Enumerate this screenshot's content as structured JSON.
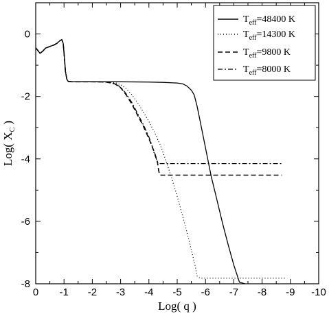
{
  "chart_data": {
    "type": "line",
    "xlabel_main": "Log( q )",
    "ylabel_main": "Log( X",
    "ylabel_sub": "C",
    "ylabel_tail": " )",
    "xlim": [
      0,
      -10
    ],
    "ylim": [
      -8,
      1
    ],
    "x_ticks": [
      0,
      -1,
      -2,
      -3,
      -4,
      -5,
      -6,
      -7,
      -8,
      -9,
      -10
    ],
    "x_tick_labels": [
      "0",
      "-1",
      "-2",
      "-3",
      "-4",
      "-5",
      "-6",
      "-7",
      "-8",
      "-9",
      "-10"
    ],
    "y_ticks": [
      0,
      -2,
      -4,
      -6,
      -8
    ],
    "y_tick_labels": [
      "0",
      "-2",
      "-4",
      "-6",
      "-8"
    ],
    "grid": false,
    "legend_position": "top-right",
    "series": [
      {
        "legend_prefix": "T",
        "legend_sub": "eff",
        "legend_suffix": "=48400 K",
        "style": "solid",
        "color": "#000000",
        "points": [
          [
            0,
            -0.45
          ],
          [
            -0.05,
            -0.5
          ],
          [
            -0.15,
            -0.62
          ],
          [
            -0.25,
            -0.55
          ],
          [
            -0.35,
            -0.45
          ],
          [
            -0.5,
            -0.4
          ],
          [
            -0.65,
            -0.35
          ],
          [
            -0.75,
            -0.3
          ],
          [
            -0.85,
            -0.22
          ],
          [
            -0.92,
            -0.18
          ],
          [
            -0.97,
            -0.3
          ],
          [
            -1.0,
            -0.6
          ],
          [
            -1.05,
            -1.2
          ],
          [
            -1.1,
            -1.45
          ],
          [
            -1.15,
            -1.52
          ],
          [
            -1.3,
            -1.53
          ],
          [
            -2.0,
            -1.53
          ],
          [
            -3.0,
            -1.53
          ],
          [
            -4.0,
            -1.54
          ],
          [
            -4.5,
            -1.55
          ],
          [
            -5.0,
            -1.57
          ],
          [
            -5.2,
            -1.6
          ],
          [
            -5.35,
            -1.67
          ],
          [
            -5.5,
            -1.8
          ],
          [
            -5.6,
            -1.95
          ],
          [
            -5.7,
            -2.3
          ],
          [
            -5.8,
            -2.75
          ],
          [
            -5.9,
            -3.2
          ],
          [
            -6.0,
            -3.65
          ],
          [
            -6.1,
            -4.1
          ],
          [
            -6.2,
            -4.55
          ],
          [
            -6.4,
            -5.3
          ],
          [
            -6.6,
            -6.05
          ],
          [
            -6.8,
            -6.75
          ],
          [
            -7.0,
            -7.4
          ],
          [
            -7.2,
            -7.95
          ],
          [
            -7.4,
            -8.0
          ]
        ]
      },
      {
        "legend_prefix": "T",
        "legend_sub": "eff",
        "legend_suffix": "=14300 K",
        "style": "dotted",
        "color": "#000000",
        "points": [
          [
            0,
            -0.45
          ],
          [
            -0.05,
            -0.5
          ],
          [
            -0.15,
            -0.62
          ],
          [
            -0.25,
            -0.55
          ],
          [
            -0.35,
            -0.45
          ],
          [
            -0.5,
            -0.4
          ],
          [
            -0.65,
            -0.35
          ],
          [
            -0.75,
            -0.3
          ],
          [
            -0.85,
            -0.22
          ],
          [
            -0.92,
            -0.18
          ],
          [
            -0.97,
            -0.3
          ],
          [
            -1.0,
            -0.6
          ],
          [
            -1.05,
            -1.2
          ],
          [
            -1.1,
            -1.45
          ],
          [
            -1.15,
            -1.52
          ],
          [
            -1.3,
            -1.53
          ],
          [
            -2.0,
            -1.53
          ],
          [
            -2.5,
            -1.54
          ],
          [
            -2.8,
            -1.56
          ],
          [
            -3.0,
            -1.62
          ],
          [
            -3.2,
            -1.75
          ],
          [
            -3.4,
            -1.95
          ],
          [
            -3.6,
            -2.2
          ],
          [
            -3.8,
            -2.5
          ],
          [
            -4.0,
            -2.8
          ],
          [
            -4.2,
            -3.15
          ],
          [
            -4.4,
            -3.55
          ],
          [
            -4.6,
            -4.05
          ],
          [
            -4.8,
            -4.6
          ],
          [
            -5.0,
            -5.2
          ],
          [
            -5.2,
            -5.85
          ],
          [
            -5.4,
            -6.55
          ],
          [
            -5.55,
            -7.1
          ],
          [
            -5.65,
            -7.5
          ],
          [
            -5.7,
            -7.75
          ],
          [
            -5.8,
            -7.82
          ],
          [
            -8.8,
            -7.82
          ]
        ]
      },
      {
        "legend_prefix": "T",
        "legend_sub": "eff",
        "legend_suffix": "=9800 K",
        "style": "dashed",
        "color": "#000000",
        "points": [
          [
            0,
            -0.45
          ],
          [
            -0.05,
            -0.5
          ],
          [
            -0.15,
            -0.62
          ],
          [
            -0.25,
            -0.55
          ],
          [
            -0.35,
            -0.45
          ],
          [
            -0.5,
            -0.4
          ],
          [
            -0.65,
            -0.35
          ],
          [
            -0.75,
            -0.3
          ],
          [
            -0.85,
            -0.22
          ],
          [
            -0.92,
            -0.18
          ],
          [
            -0.97,
            -0.3
          ],
          [
            -1.0,
            -0.6
          ],
          [
            -1.05,
            -1.2
          ],
          [
            -1.1,
            -1.45
          ],
          [
            -1.15,
            -1.52
          ],
          [
            -1.3,
            -1.53
          ],
          [
            -2.0,
            -1.53
          ],
          [
            -2.5,
            -1.54
          ],
          [
            -2.8,
            -1.6
          ],
          [
            -3.0,
            -1.72
          ],
          [
            -3.2,
            -1.95
          ],
          [
            -3.4,
            -2.25
          ],
          [
            -3.6,
            -2.6
          ],
          [
            -3.8,
            -2.95
          ],
          [
            -4.0,
            -3.35
          ],
          [
            -4.2,
            -3.8
          ],
          [
            -4.3,
            -4.1
          ],
          [
            -4.35,
            -4.4
          ],
          [
            -4.4,
            -4.52
          ],
          [
            -8.7,
            -4.52
          ]
        ]
      },
      {
        "legend_prefix": "T",
        "legend_sub": "eff",
        "legend_suffix": "=8000 K",
        "style": "dashdot",
        "color": "#000000",
        "points": [
          [
            0,
            -0.45
          ],
          [
            -0.05,
            -0.5
          ],
          [
            -0.15,
            -0.62
          ],
          [
            -0.25,
            -0.55
          ],
          [
            -0.35,
            -0.45
          ],
          [
            -0.5,
            -0.4
          ],
          [
            -0.65,
            -0.35
          ],
          [
            -0.75,
            -0.3
          ],
          [
            -0.85,
            -0.22
          ],
          [
            -0.92,
            -0.18
          ],
          [
            -0.97,
            -0.3
          ],
          [
            -1.0,
            -0.6
          ],
          [
            -1.05,
            -1.2
          ],
          [
            -1.1,
            -1.45
          ],
          [
            -1.15,
            -1.52
          ],
          [
            -1.3,
            -1.53
          ],
          [
            -2.0,
            -1.53
          ],
          [
            -2.5,
            -1.54
          ],
          [
            -2.8,
            -1.6
          ],
          [
            -3.0,
            -1.7
          ],
          [
            -3.2,
            -1.92
          ],
          [
            -3.4,
            -2.2
          ],
          [
            -3.6,
            -2.55
          ],
          [
            -3.8,
            -2.9
          ],
          [
            -4.0,
            -3.3
          ],
          [
            -4.1,
            -3.55
          ],
          [
            -4.2,
            -3.85
          ],
          [
            -4.3,
            -4.1
          ],
          [
            -4.35,
            -4.15
          ],
          [
            -8.7,
            -4.15
          ]
        ]
      }
    ]
  }
}
